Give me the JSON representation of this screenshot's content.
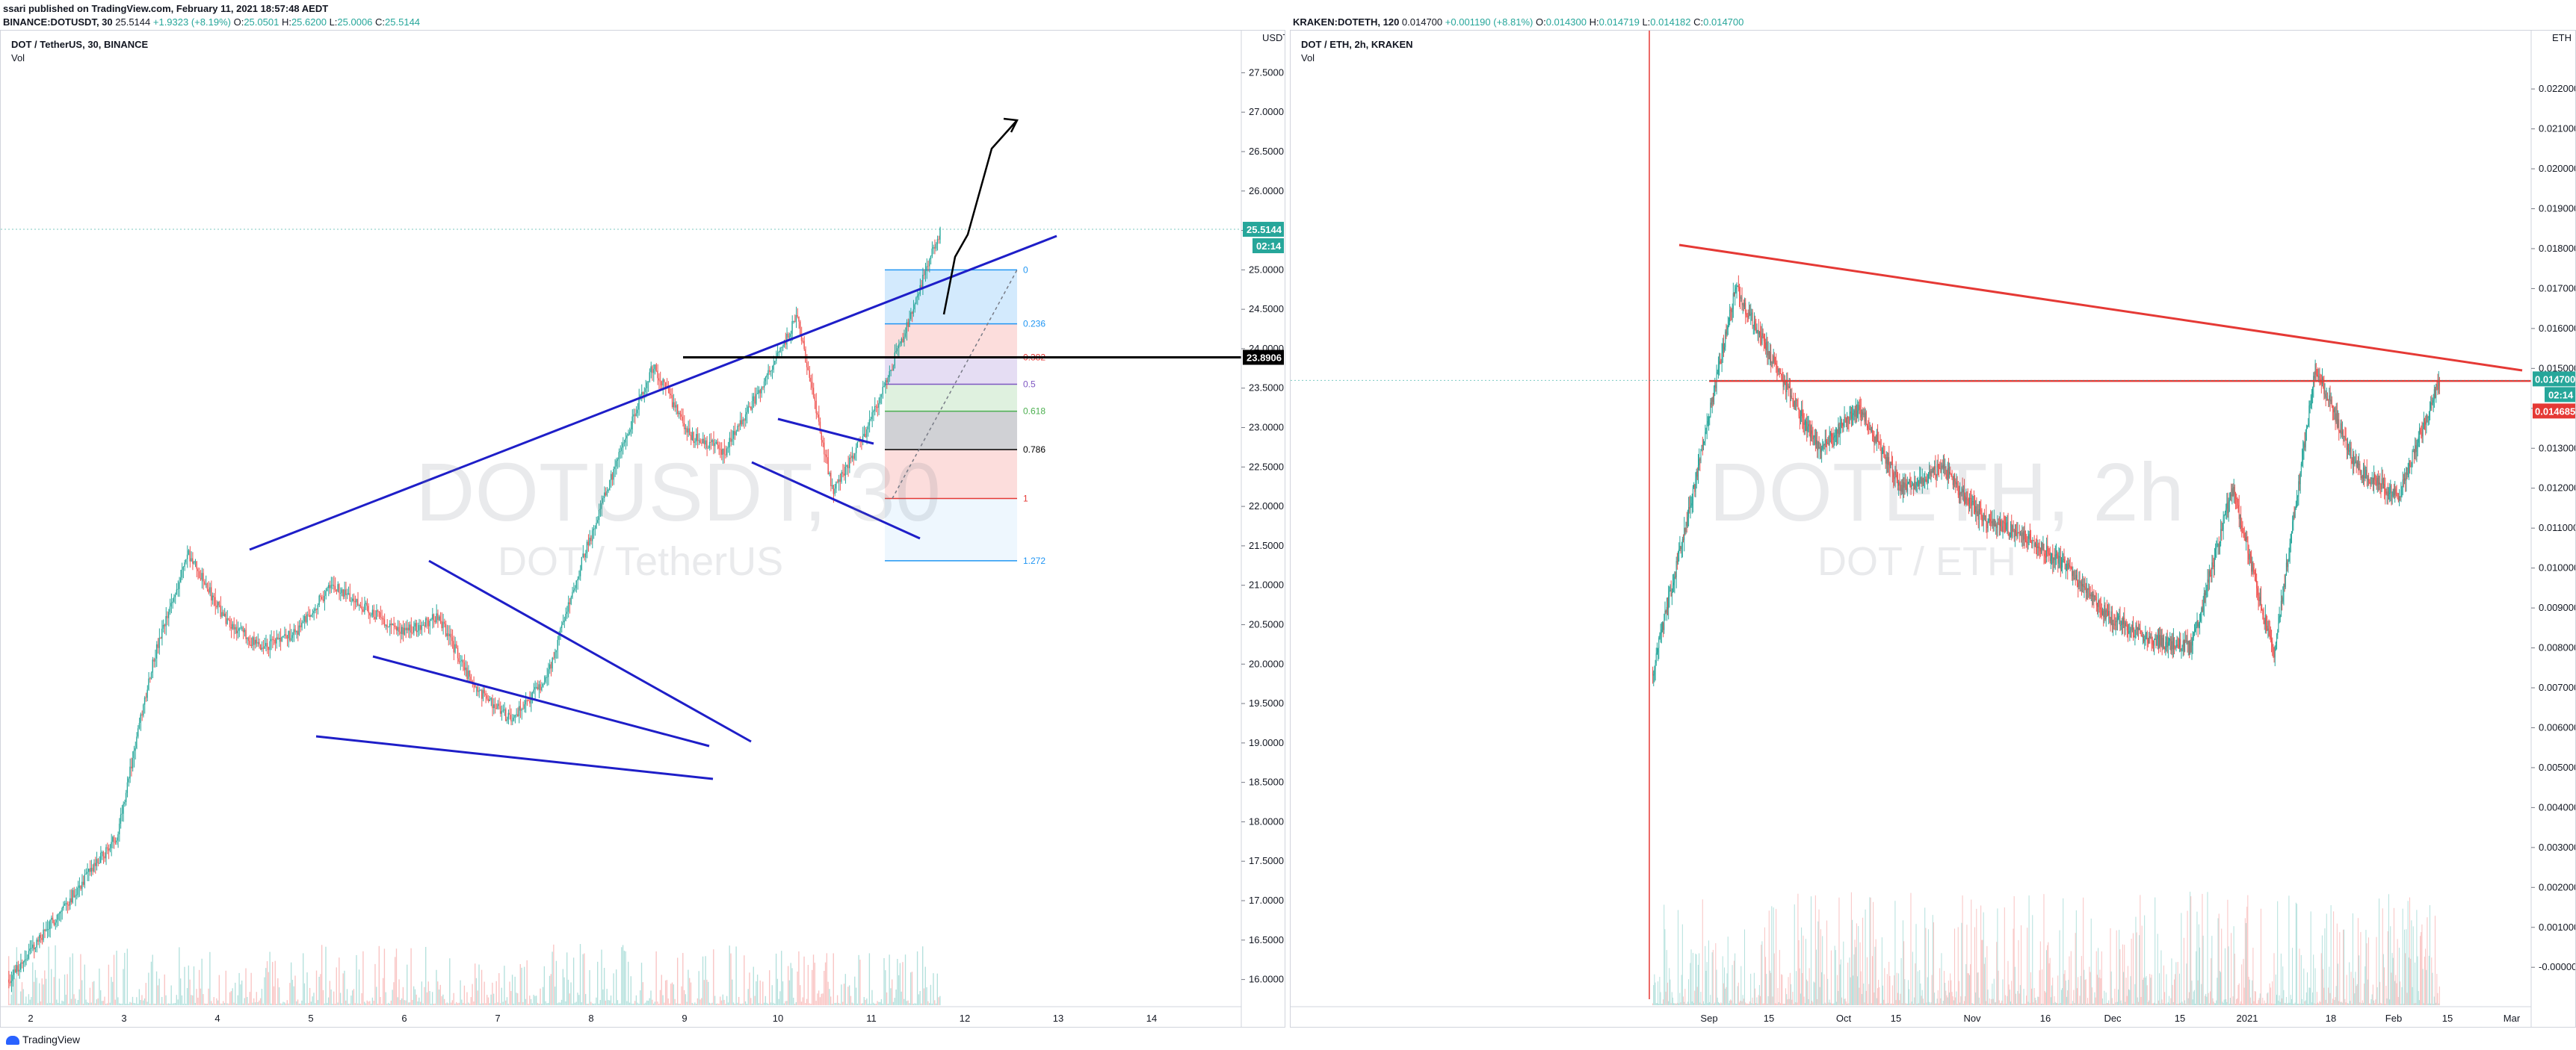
{
  "header": {
    "publisher_line": "ssari published on TradingView.com, February 11, 2021 18:57:48 AEDT",
    "left_ohlc": {
      "symbol": "BINANCE:DOTUSDT, 30",
      "last": "25.5144",
      "change": "+1.9323 (+8.19%)",
      "o_label": "O:",
      "o": "25.0501",
      "h_label": "H:",
      "h": "25.6200",
      "l_label": "L:",
      "l": "25.0006",
      "c_label": "C:",
      "c": "25.5144"
    },
    "right_ohlc": {
      "symbol": "KRAKEN:DOTETH, 120",
      "last": "0.014700",
      "change": "+0.001190 (+8.81%)",
      "o_label": "O:",
      "o": "0.014300",
      "h_label": "H:",
      "h": "0.014719",
      "l_label": "L:",
      "l": "0.014182",
      "c_label": "C:",
      "c": "0.014700"
    }
  },
  "left_pane": {
    "legend_title": "DOT / TetherUS, 30, BINANCE",
    "legend_vol": "Vol",
    "watermark_main": "DOTUSDT, 30",
    "watermark_sub": "DOT / TetherUS",
    "currency": "USDT",
    "last_price_tag": "25.5144",
    "countdown_tag": "02:14",
    "horizontal_level_tag": "23.8906",
    "fib_labels": [
      "0",
      "0.236",
      "0.382",
      "0.5",
      "0.618",
      "0.786",
      "1",
      "1.272"
    ]
  },
  "right_pane": {
    "legend_title": "DOT / ETH, 2h, KRAKEN",
    "legend_vol": "Vol",
    "watermark_main": "DOTETH, 2h",
    "watermark_sub": "DOT / ETH",
    "currency": "ETH",
    "last_price_tag": "0.014700",
    "countdown_tag": "02:14",
    "horizontal_level_tag": "0.014685"
  },
  "footer": {
    "brand": "TradingView"
  },
  "colors": {
    "up": "#26a69a",
    "down": "#ef5350",
    "trendline_blue": "#1e1ec8",
    "trendline_red": "#e53935",
    "level_black": "#000000"
  },
  "chart_data": [
    {
      "type": "candlestick",
      "title": "DOT / TetherUS, 30, BINANCE",
      "ylabel": "USDT",
      "ylim": [
        15.75,
        27.75
      ],
      "y_ticks": [
        "27.5000",
        "27.0000",
        "26.5000",
        "26.0000",
        "25.5000",
        "25.0000",
        "24.5000",
        "24.0000",
        "23.5000",
        "23.0000",
        "22.5000",
        "22.0000",
        "21.5000",
        "21.0000",
        "20.5000",
        "20.0000",
        "19.5000",
        "19.0000",
        "18.5000",
        "18.0000",
        "17.5000",
        "17.0000",
        "16.5000",
        "16.0000"
      ],
      "x_ticks": [
        "2",
        "3",
        "4",
        "5",
        "6",
        "7",
        "8",
        "9",
        "10",
        "11",
        "12",
        "13",
        "14"
      ],
      "approx_closes": [
        {
          "x": "2",
          "y": 16.0
        },
        {
          "x": "3",
          "y": 16.6
        },
        {
          "x": "3.5",
          "y": 17.2
        },
        {
          "x": "4",
          "y": 17.8
        },
        {
          "x": "4.3",
          "y": 20.0
        },
        {
          "x": "4.5",
          "y": 21.4
        },
        {
          "x": "4.8",
          "y": 20.6
        },
        {
          "x": "5",
          "y": 20.2
        },
        {
          "x": "5.5",
          "y": 20.4
        },
        {
          "x": "6",
          "y": 21.0
        },
        {
          "x": "6.5",
          "y": 20.7
        },
        {
          "x": "7",
          "y": 20.4
        },
        {
          "x": "7.5",
          "y": 20.6
        },
        {
          "x": "8",
          "y": 19.7
        },
        {
          "x": "8.3",
          "y": 19.3
        },
        {
          "x": "8.6",
          "y": 19.8
        },
        {
          "x": "8.9",
          "y": 21.3
        },
        {
          "x": "9.1",
          "y": 22.6
        },
        {
          "x": "9.5",
          "y": 23.8
        },
        {
          "x": "9.8",
          "y": 22.9
        },
        {
          "x": "10",
          "y": 22.7
        },
        {
          "x": "10.5",
          "y": 23.5
        },
        {
          "x": "10.8",
          "y": 24.4
        },
        {
          "x": "11",
          "y": 22.2
        },
        {
          "x": "11.3",
          "y": 23.0
        },
        {
          "x": "11.5",
          "y": 24.2
        },
        {
          "x": "11.7",
          "y": 25.5
        }
      ],
      "horizontal_level": 23.8906,
      "last_price": 25.5144,
      "fib_retracement": {
        "from": 25.0,
        "to": 22.1,
        "levels": [
          0,
          0.236,
          0.382,
          0.5,
          0.618,
          0.786,
          1,
          1.272
        ]
      }
    },
    {
      "type": "candlestick",
      "title": "DOT / ETH, 2h, KRAKEN",
      "ylabel": "ETH",
      "ylim": [
        -0.0008,
        0.0229
      ],
      "y_ticks": [
        "0.022000",
        "0.021000",
        "0.020000",
        "0.019000",
        "0.018000",
        "0.017000",
        "0.016000",
        "0.015000",
        "0.014000",
        "0.013000",
        "0.012000",
        "0.011000",
        "0.010000",
        "0.009000",
        "0.008000",
        "0.007000",
        "0.006000",
        "0.005000",
        "0.004000",
        "0.003000",
        "0.002000",
        "0.001000",
        "-0.000000"
      ],
      "x_ticks": [
        "Sep",
        "15",
        "Oct",
        "15",
        "Nov",
        "16",
        "Dec",
        "15",
        "2021",
        "18",
        "Feb",
        "15",
        "Mar"
      ],
      "approx_closes": [
        {
          "x": "Aug 24",
          "y": 0.0074
        },
        {
          "x": "Aug 27",
          "y": 0.012
        },
        {
          "x": "Aug 30",
          "y": 0.017
        },
        {
          "x": "Sep 3",
          "y": 0.015
        },
        {
          "x": "Sep 8",
          "y": 0.013
        },
        {
          "x": "Sep 15",
          "y": 0.014
        },
        {
          "x": "Sep 22",
          "y": 0.012
        },
        {
          "x": "Oct 1",
          "y": 0.0125
        },
        {
          "x": "Oct 15",
          "y": 0.0112
        },
        {
          "x": "Nov 1",
          "y": 0.0108
        },
        {
          "x": "Nov 16",
          "y": 0.01
        },
        {
          "x": "Dec 1",
          "y": 0.0088
        },
        {
          "x": "Dec 15",
          "y": 0.0082
        },
        {
          "x": "Dec 29",
          "y": 0.008
        },
        {
          "x": "2021",
          "y": 0.012
        },
        {
          "x": "Jan 10",
          "y": 0.0078
        },
        {
          "x": "Jan 18",
          "y": 0.015
        },
        {
          "x": "Jan 25",
          "y": 0.0125
        },
        {
          "x": "Feb 3",
          "y": 0.0118
        },
        {
          "x": "Feb 11",
          "y": 0.0147
        }
      ],
      "horizontal_level": 0.014685,
      "last_price": 0.0147
    }
  ]
}
